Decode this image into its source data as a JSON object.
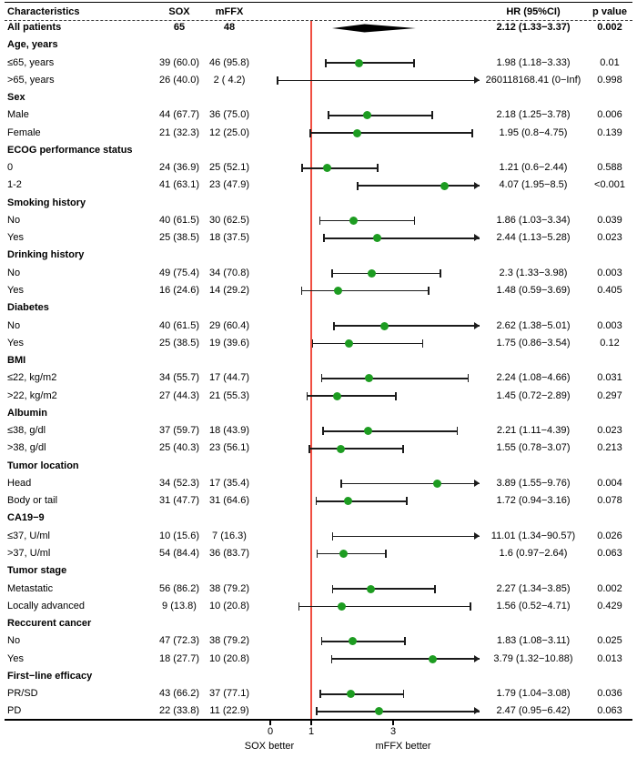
{
  "header": {
    "characteristics": "Characteristics",
    "sox": "SOX",
    "mffx": "mFFX",
    "hr": "HR (95%CI)",
    "p": "p value"
  },
  "axis": {
    "left_label": "SOX better",
    "right_label": "mFFX better",
    "ticks": [
      {
        "value": 0,
        "label": "0"
      },
      {
        "value": 1,
        "label": "1"
      },
      {
        "value": 3,
        "label": "3"
      }
    ]
  },
  "colors": {
    "point": "#1d9c21",
    "reference_line": "#f04e41",
    "ci": "#1b1b1b",
    "summary_diamond": "#000000"
  },
  "chart_data": {
    "type": "forest",
    "xlim": [
      0,
      5
    ],
    "reference_value": 1,
    "grid": false,
    "rows": [
      {
        "kind": "summary",
        "label": "All patients",
        "sox": "65",
        "mffx": "48",
        "est": 2.12,
        "lo": 1.33,
        "hi": 3.37,
        "hr": "2.12 (1.33−3.37)",
        "p": "0.002"
      },
      {
        "kind": "group",
        "label": "Age, years"
      },
      {
        "kind": "item",
        "label": "≤65, years",
        "sox": "39 (60.0)",
        "mffx": "46 (95.8)",
        "est": 1.98,
        "lo": 1.18,
        "hi": 3.33,
        "hr": "1.98 (1.18−3.33)",
        "p": "0.01"
      },
      {
        "kind": "item",
        "label": ">65, years",
        "sox": "26 (40.0)",
        "mffx": "2 ( 4.2)",
        "est": 260118168.41,
        "lo": 0,
        "hi": 999999,
        "hr": "260118168.41 (0−Inf)",
        "p": "0.998"
      },
      {
        "kind": "group",
        "label": "Sex"
      },
      {
        "kind": "item",
        "label": "Male",
        "sox": "44 (67.7)",
        "mffx": "36 (75.0)",
        "est": 2.18,
        "lo": 1.25,
        "hi": 3.78,
        "hr": "2.18 (1.25−3.78)",
        "p": "0.006"
      },
      {
        "kind": "item",
        "label": "Female",
        "sox": "21 (32.3)",
        "mffx": "12 (25.0)",
        "est": 1.95,
        "lo": 0.8,
        "hi": 4.75,
        "hr": "1.95 (0.8−4.75)",
        "p": "0.139"
      },
      {
        "kind": "group",
        "label": "ECOG performance status"
      },
      {
        "kind": "item",
        "label": "0",
        "sox": "24 (36.9)",
        "mffx": "25 (52.1)",
        "est": 1.21,
        "lo": 0.6,
        "hi": 2.44,
        "hr": "1.21 (0.6−2.44)",
        "p": "0.588"
      },
      {
        "kind": "item",
        "label": "1-2",
        "sox": "41 (63.1)",
        "mffx": "23 (47.9)",
        "est": 4.07,
        "lo": 1.95,
        "hi": 8.5,
        "hr": "4.07 (1.95−8.5)",
        "p": "<0.001"
      },
      {
        "kind": "group",
        "label": "Smoking history"
      },
      {
        "kind": "item",
        "label": "No",
        "sox": "40 (61.5)",
        "mffx": "30 (62.5)",
        "est": 1.86,
        "lo": 1.03,
        "hi": 3.34,
        "hr": "1.86 (1.03−3.34)",
        "p": "0.039"
      },
      {
        "kind": "item",
        "label": "Yes",
        "sox": "25 (38.5)",
        "mffx": "18 (37.5)",
        "est": 2.44,
        "lo": 1.13,
        "hi": 5.28,
        "hr": "2.44 (1.13−5.28)",
        "p": "0.023"
      },
      {
        "kind": "group",
        "label": "Drinking history"
      },
      {
        "kind": "item",
        "label": "No",
        "sox": "49 (75.4)",
        "mffx": "34 (70.8)",
        "est": 2.3,
        "lo": 1.33,
        "hi": 3.98,
        "hr": "2.3 (1.33−3.98)",
        "p": "0.003"
      },
      {
        "kind": "item",
        "label": "Yes",
        "sox": "16 (24.6)",
        "mffx": "14 (29.2)",
        "est": 1.48,
        "lo": 0.59,
        "hi": 3.69,
        "hr": "1.48 (0.59−3.69)",
        "p": "0.405"
      },
      {
        "kind": "group",
        "label": "Diabetes"
      },
      {
        "kind": "item",
        "label": "No",
        "sox": "40 (61.5)",
        "mffx": "29 (60.4)",
        "est": 2.62,
        "lo": 1.38,
        "hi": 5.01,
        "hr": "2.62 (1.38−5.01)",
        "p": "0.003"
      },
      {
        "kind": "item",
        "label": "Yes",
        "sox": "25 (38.5)",
        "mffx": "19 (39.6)",
        "est": 1.75,
        "lo": 0.86,
        "hi": 3.54,
        "hr": "1.75 (0.86−3.54)",
        "p": "0.12"
      },
      {
        "kind": "group",
        "label": "BMI"
      },
      {
        "kind": "item",
        "label": "≤22, kg/m2",
        "sox": "34 (55.7)",
        "mffx": "17 (44.7)",
        "est": 2.24,
        "lo": 1.08,
        "hi": 4.66,
        "hr": "2.24 (1.08−4.66)",
        "p": "0.031"
      },
      {
        "kind": "item",
        "label": ">22, kg/m2",
        "sox": "27 (44.3)",
        "mffx": "21 (55.3)",
        "est": 1.45,
        "lo": 0.72,
        "hi": 2.89,
        "hr": "1.45 (0.72−2.89)",
        "p": "0.297"
      },
      {
        "kind": "group",
        "label": "Albumin"
      },
      {
        "kind": "item",
        "label": "≤38, g/dl",
        "sox": "37 (59.7)",
        "mffx": "18 (43.9)",
        "est": 2.21,
        "lo": 1.11,
        "hi": 4.39,
        "hr": "2.21 (1.11−4.39)",
        "p": "0.023"
      },
      {
        "kind": "item",
        "label": ">38, g/dl",
        "sox": "25 (40.3)",
        "mffx": "23 (56.1)",
        "est": 1.55,
        "lo": 0.78,
        "hi": 3.07,
        "hr": "1.55 (0.78−3.07)",
        "p": "0.213"
      },
      {
        "kind": "group",
        "label": "Tumor location"
      },
      {
        "kind": "item",
        "label": "Head",
        "sox": "34 (52.3)",
        "mffx": "17 (35.4)",
        "est": 3.89,
        "lo": 1.55,
        "hi": 9.76,
        "hr": "3.89 (1.55−9.76)",
        "p": "0.004"
      },
      {
        "kind": "item",
        "label": "Body or tail",
        "sox": "31 (47.7)",
        "mffx": "31 (64.6)",
        "est": 1.72,
        "lo": 0.94,
        "hi": 3.16,
        "hr": "1.72 (0.94−3.16)",
        "p": "0.078"
      },
      {
        "kind": "group",
        "label": "CA19−9"
      },
      {
        "kind": "item",
        "label": "≤37, U/ml",
        "sox": "10 (15.6)",
        "mffx": "7 (16.3)",
        "est": 11.01,
        "lo": 1.34,
        "hi": 90.57,
        "hr": "11.01 (1.34−90.57)",
        "p": "0.026"
      },
      {
        "kind": "item",
        "label": ">37, U/ml",
        "sox": "54 (84.4)",
        "mffx": "36 (83.7)",
        "est": 1.6,
        "lo": 0.97,
        "hi": 2.64,
        "hr": "1.6 (0.97−2.64)",
        "p": "0.063"
      },
      {
        "kind": "group",
        "label": "Tumor stage"
      },
      {
        "kind": "item",
        "label": "Metastatic",
        "sox": "56 (86.2)",
        "mffx": "38 (79.2)",
        "est": 2.27,
        "lo": 1.34,
        "hi": 3.85,
        "hr": "2.27 (1.34−3.85)",
        "p": "0.002"
      },
      {
        "kind": "item",
        "label": "Locally advanced",
        "sox": "9 (13.8)",
        "mffx": "10 (20.8)",
        "est": 1.56,
        "lo": 0.52,
        "hi": 4.71,
        "hr": "1.56 (0.52−4.71)",
        "p": "0.429"
      },
      {
        "kind": "group",
        "label": "Reccurent cancer"
      },
      {
        "kind": "item",
        "label": "No",
        "sox": "47 (72.3)",
        "mffx": "38 (79.2)",
        "est": 1.83,
        "lo": 1.08,
        "hi": 3.11,
        "hr": "1.83 (1.08−3.11)",
        "p": "0.025"
      },
      {
        "kind": "item",
        "label": "Yes",
        "sox": "18 (27.7)",
        "mffx": "10 (20.8)",
        "est": 3.79,
        "lo": 1.32,
        "hi": 10.88,
        "hr": "3.79 (1.32−10.88)",
        "p": "0.013"
      },
      {
        "kind": "group",
        "label": "First−line efficacy"
      },
      {
        "kind": "item",
        "label": "PR/SD",
        "sox": "43 (66.2)",
        "mffx": "37 (77.1)",
        "est": 1.79,
        "lo": 1.04,
        "hi": 3.08,
        "hr": "1.79 (1.04−3.08)",
        "p": "0.036"
      },
      {
        "kind": "item",
        "label": "PD",
        "sox": "22 (33.8)",
        "mffx": "11 (22.9)",
        "est": 2.47,
        "lo": 0.95,
        "hi": 6.42,
        "hr": "2.47 (0.95−6.42)",
        "p": "0.063"
      }
    ]
  }
}
